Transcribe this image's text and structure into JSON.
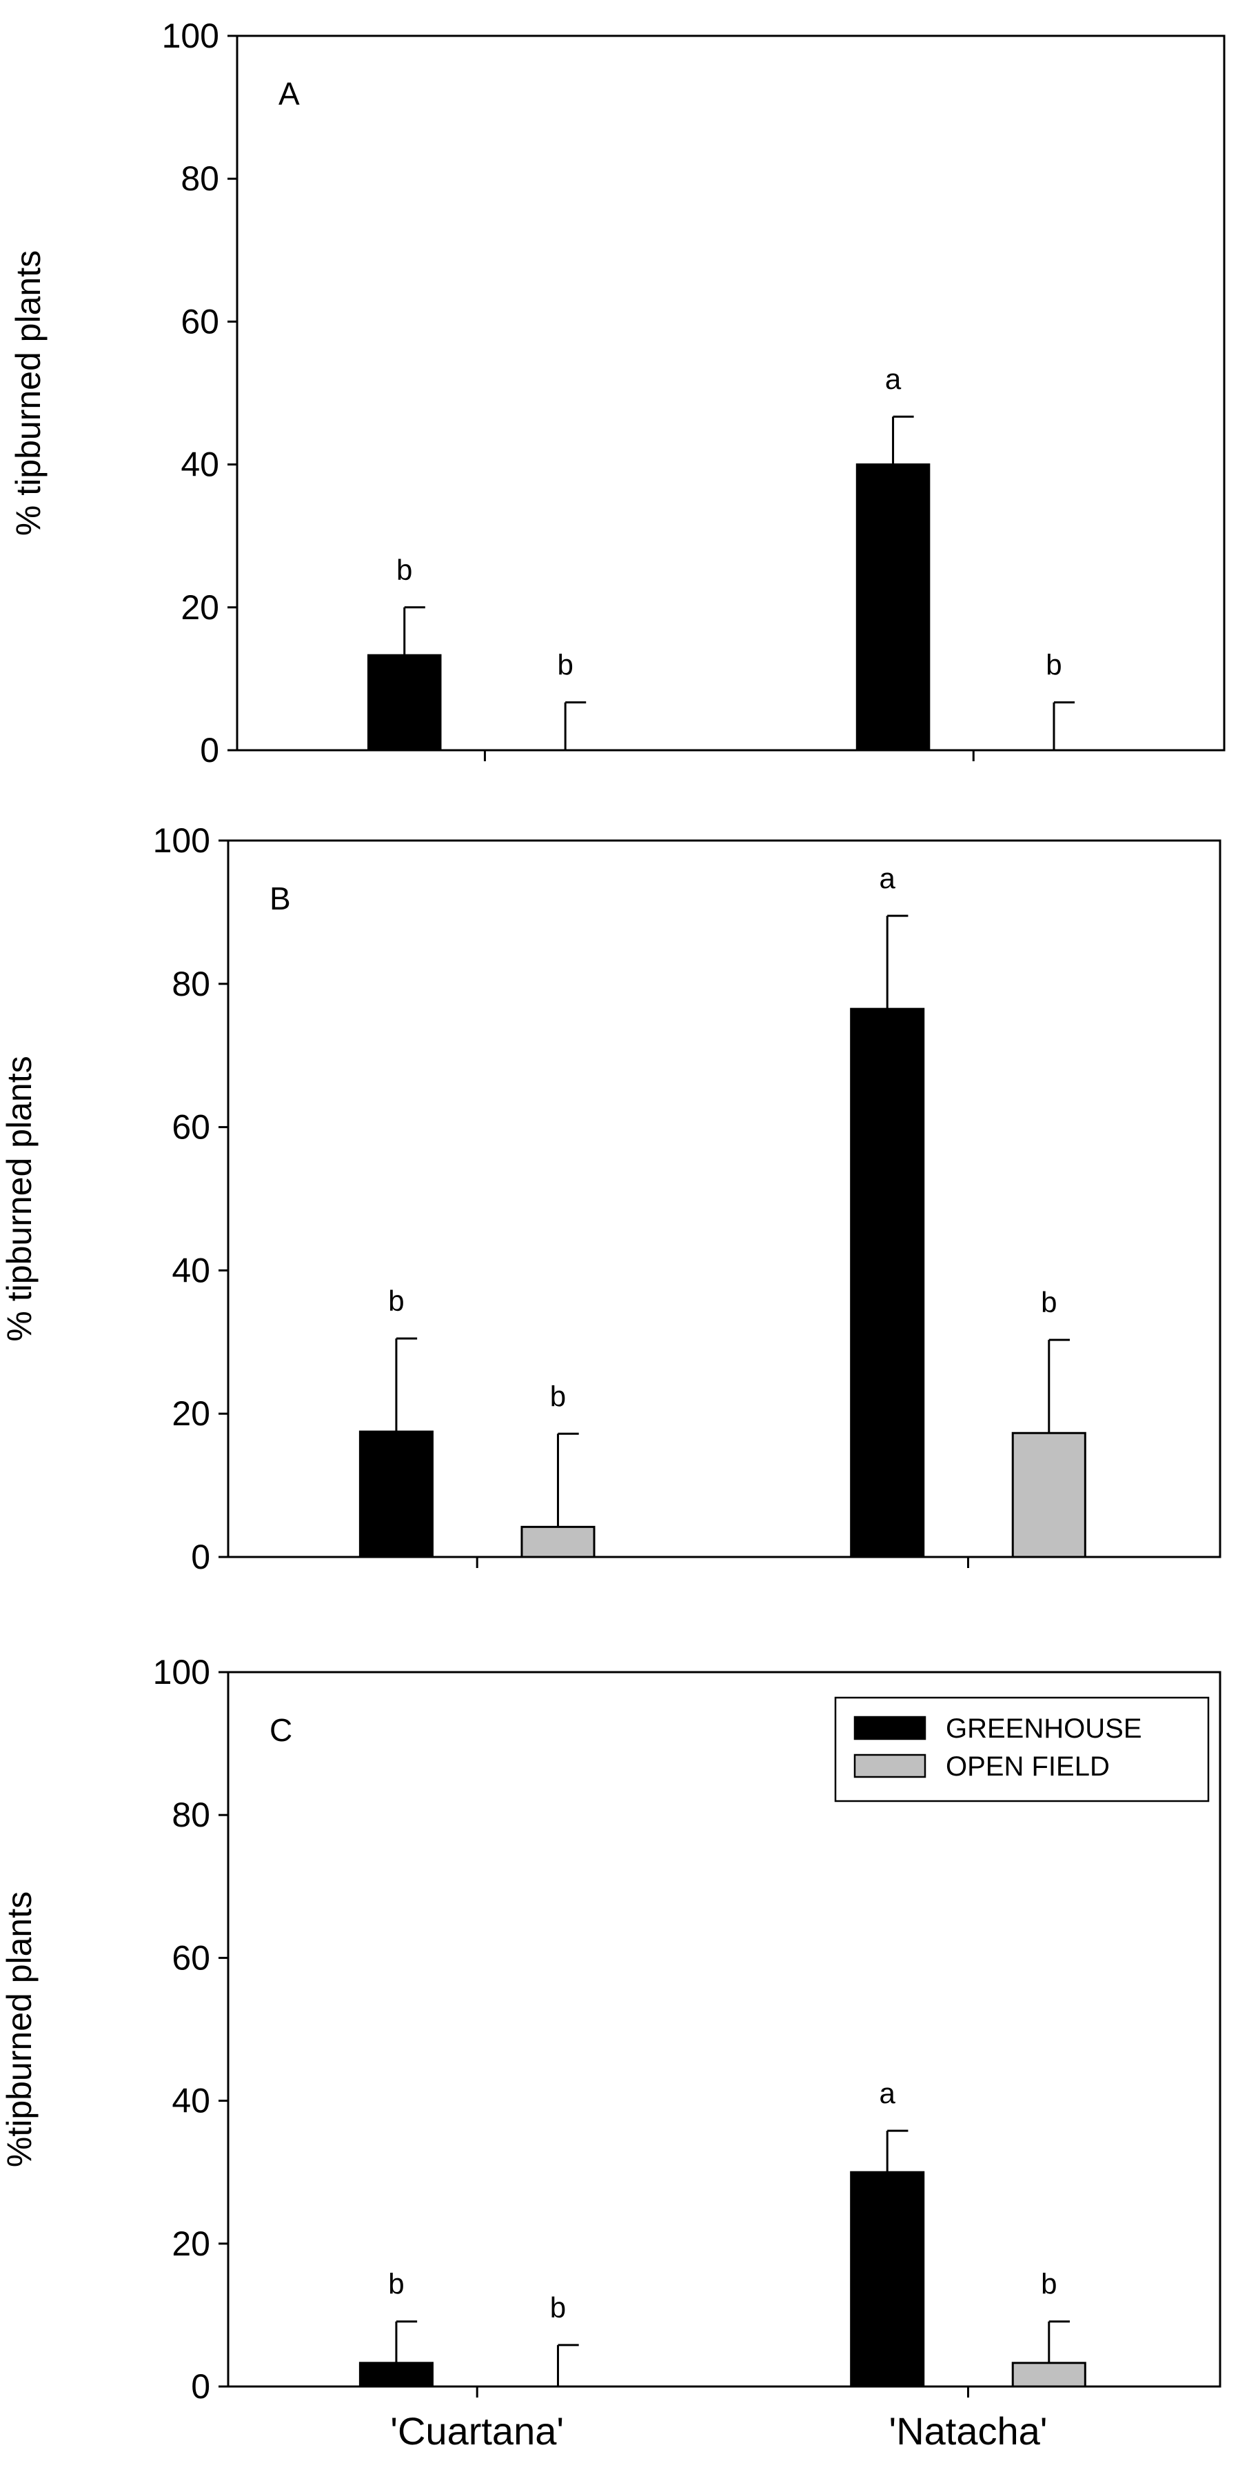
{
  "chart_data": [
    {
      "type": "bar",
      "panel_label": "A",
      "categories": [
        "'Cuartana'",
        "'Natacha'"
      ],
      "series": [
        {
          "name": "GREENHOUSE",
          "values": [
            13.3,
            40.0
          ],
          "errors": [
            6.7,
            6.7
          ],
          "letters": [
            "b",
            "a"
          ]
        },
        {
          "name": "OPEN FIELD",
          "values": [
            0,
            0
          ],
          "errors": [
            6.7,
            6.7
          ],
          "letters": [
            "b",
            "b"
          ]
        }
      ],
      "ylabel": "% tipburned plants",
      "ylim": [
        0,
        100
      ],
      "yticks": [
        0,
        20,
        40,
        60,
        80,
        100
      ],
      "show_xticklabels": false,
      "legend": null
    },
    {
      "type": "bar",
      "panel_label": "B",
      "categories": [
        "'Cuartana'",
        "'Natacha'"
      ],
      "series": [
        {
          "name": "GREENHOUSE",
          "values": [
            17.5,
            76.5
          ],
          "errors": [
            13.0,
            13.0
          ],
          "letters": [
            "b",
            "a"
          ]
        },
        {
          "name": "OPEN FIELD",
          "values": [
            4.2,
            17.3
          ],
          "errors": [
            13.0,
            13.0
          ],
          "letters": [
            "b",
            "b"
          ]
        }
      ],
      "ylabel": "% tipburned plants",
      "ylim": [
        0,
        100
      ],
      "yticks": [
        0,
        20,
        40,
        60,
        80,
        100
      ],
      "show_xticklabels": false,
      "legend": null
    },
    {
      "type": "bar",
      "panel_label": "C",
      "categories": [
        "'Cuartana'",
        "'Natacha'"
      ],
      "series": [
        {
          "name": "GREENHOUSE",
          "values": [
            3.3,
            30.0
          ],
          "errors": [
            5.8,
            5.8
          ],
          "letters": [
            "b",
            "a"
          ]
        },
        {
          "name": "OPEN FIELD",
          "values": [
            0,
            3.3
          ],
          "errors": [
            5.8,
            5.8
          ],
          "letters": [
            "b",
            "b"
          ]
        }
      ],
      "ylabel": "%tipburned plants",
      "ylim": [
        0,
        100
      ],
      "yticks": [
        0,
        20,
        40,
        60,
        80,
        100
      ],
      "show_xticklabels": true,
      "legend": {
        "placement": "top-right",
        "entries": [
          "GREENHOUSE",
          "OPEN FIELD"
        ]
      }
    }
  ],
  "colors": {
    "GREENHOUSE": "#000000",
    "OPEN FIELD": "#c0c0c0",
    "axis": "#000000",
    "background": "#ffffff"
  }
}
